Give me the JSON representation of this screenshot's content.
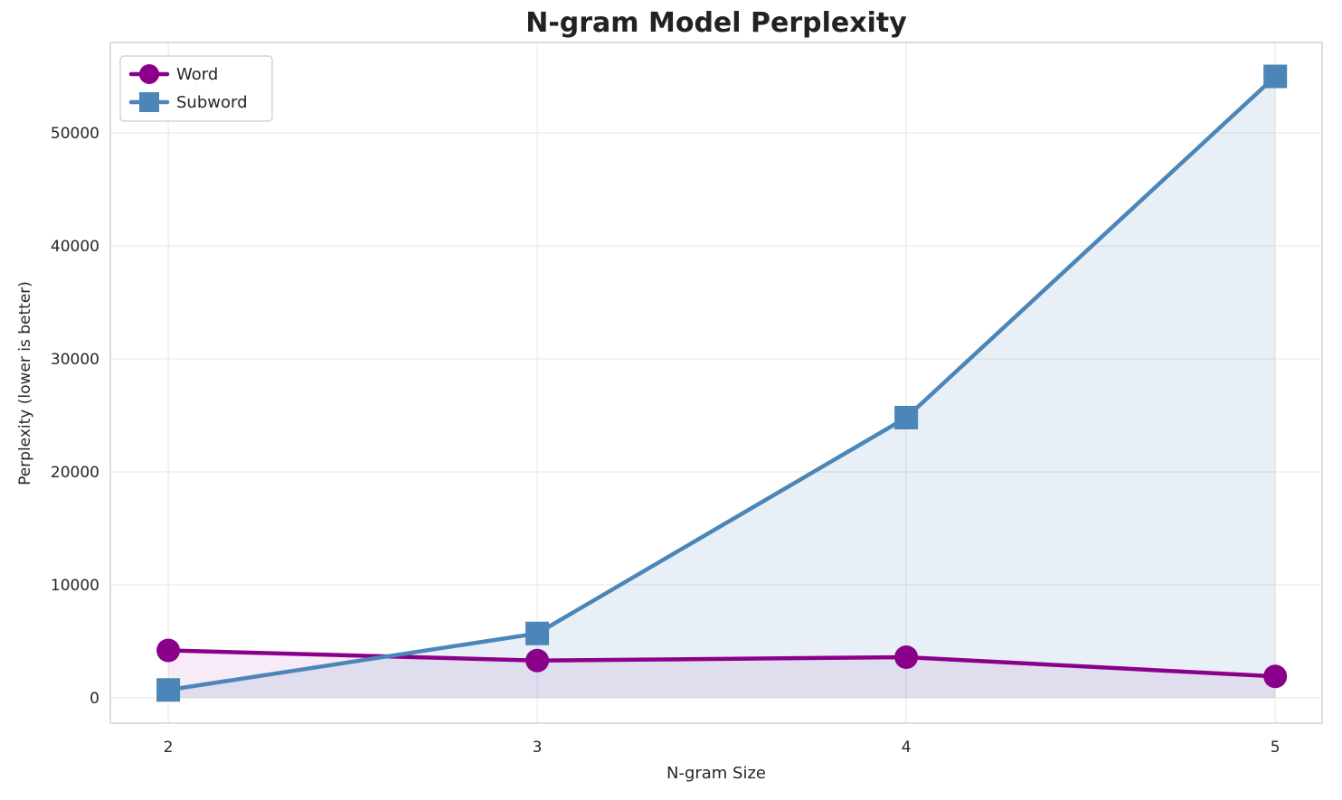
{
  "chart_data": {
    "type": "line",
    "title": "N-gram Model Perplexity",
    "xlabel": "N-gram Size",
    "ylabel": "Perplexity (lower is better)",
    "x": [
      2,
      3,
      4,
      5
    ],
    "series": [
      {
        "name": "Word",
        "values": [
          4200,
          3300,
          3600,
          1900
        ],
        "color": "#8B008B",
        "marker": "circle",
        "fill_opacity": 0.08
      },
      {
        "name": "Subword",
        "values": [
          700,
          5700,
          24800,
          55000
        ],
        "color": "#4C86B8",
        "marker": "square",
        "fill_opacity": 0.13
      }
    ],
    "xticks": [
      "2",
      "3",
      "4",
      "5"
    ],
    "xtick_values": [
      2,
      3,
      4,
      5
    ],
    "yticks": [
      "0",
      "10000",
      "20000",
      "30000",
      "40000",
      "50000"
    ],
    "ytick_values": [
      0,
      10000,
      20000,
      30000,
      40000,
      50000
    ],
    "xlim": [
      1.843,
      5.127
    ],
    "ylim": [
      -2240,
      58000
    ],
    "grid": true,
    "legend_position": "upper left",
    "colors": {
      "grid": "#e5e5e5",
      "spine": "#d4d4d4",
      "text": "#262626",
      "legend_border": "#cccccc",
      "legend_bg": "#ffffff"
    }
  }
}
